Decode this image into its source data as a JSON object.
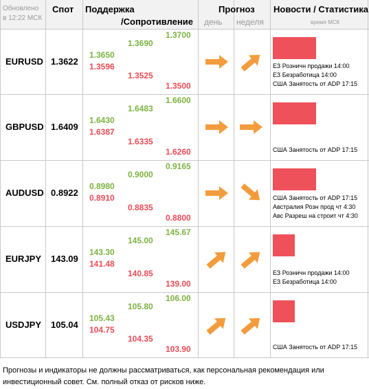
{
  "header": {
    "updated_line1": "Обновлено",
    "updated_line2": "в 12:22 МСК",
    "spot": "Спот",
    "support": "Поддержка",
    "resistance": "/Сопротивление",
    "forecast": "Прогноз",
    "day": "день",
    "week": "неделя",
    "news": "Новости / Статистика",
    "time_note": "время МСК"
  },
  "rows": [
    {
      "pair": "EURUSD",
      "spot": "1.3622",
      "col1_green": "1.3650",
      "col1_red": "1.3596",
      "col2_green": "1.3690",
      "col2_red": "1.3525",
      "col3_green": "1.3700",
      "col3_red": "1.3500",
      "day_arrow": "arrow-right-icon",
      "week_arrow": "arrow-up-right-icon",
      "bar_pct": 100,
      "news": [
        "ЕЗ Розничн продажи 14:00",
        "ЕЗ Безработица 14:00",
        "США Занятость от ADP 17:15"
      ]
    },
    {
      "pair": "GBPUSD",
      "spot": "1.6409",
      "col1_green": "1.6430",
      "col1_red": "1.6387",
      "col2_green": "1.6483",
      "col2_red": "1.6335",
      "col3_green": "1.6600",
      "col3_red": "1.6260",
      "day_arrow": "arrow-right-icon",
      "week_arrow": "arrow-right-icon",
      "bar_pct": 100,
      "news": [
        "США Занятость от ADP 17:15"
      ]
    },
    {
      "pair": "AUDUSD",
      "spot": "0.8922",
      "col1_green": "0.8980",
      "col1_red": "0.8910",
      "col2_green": "0.9000",
      "col2_red": "0.8835",
      "col3_green": "0.9165",
      "col3_red": "0.8800",
      "day_arrow": "arrow-right-icon",
      "week_arrow": "arrow-down-right-icon",
      "bar_pct": 100,
      "news": [
        "США Занятость от ADP 17:15",
        "Австралия Розн прод чт 4:30",
        "Авс Разреш на строит чт 4:30"
      ]
    },
    {
      "pair": "EURJPY",
      "spot": "143.09",
      "col1_green": "143.30",
      "col1_red": "141.48",
      "col2_green": "145.00",
      "col2_red": "140.85",
      "col3_green": "145.67",
      "col3_red": "139.00",
      "day_arrow": "arrow-up-right-icon",
      "week_arrow": "arrow-up-right-icon",
      "bar_pct": 50,
      "news": [
        "ЕЗ Розничн продажи 14:00",
        "ЕЗ Безработица 14:00"
      ]
    },
    {
      "pair": "USDJPY",
      "spot": "105.04",
      "col1_green": "105.43",
      "col1_red": "104.75",
      "col2_green": "105.80",
      "col2_red": "104.35",
      "col3_green": "106.00",
      "col3_red": "103.90",
      "day_arrow": "arrow-up-right-icon",
      "week_arrow": "arrow-up-right-icon",
      "bar_pct": 50,
      "news": [
        "США Занятость от ADP 17:15"
      ]
    }
  ],
  "footer": {
    "line1": "Прогнозы и индикаторы не должны рассматриваться, как персональная рекомендация или",
    "line2": "инвестиционный совет. См. полный отказ от рисков ниже."
  },
  "colors": {
    "green": "#7cb342",
    "red": "#e84c55",
    "arrow": "#f39c3d",
    "bar": "#ee5159"
  }
}
